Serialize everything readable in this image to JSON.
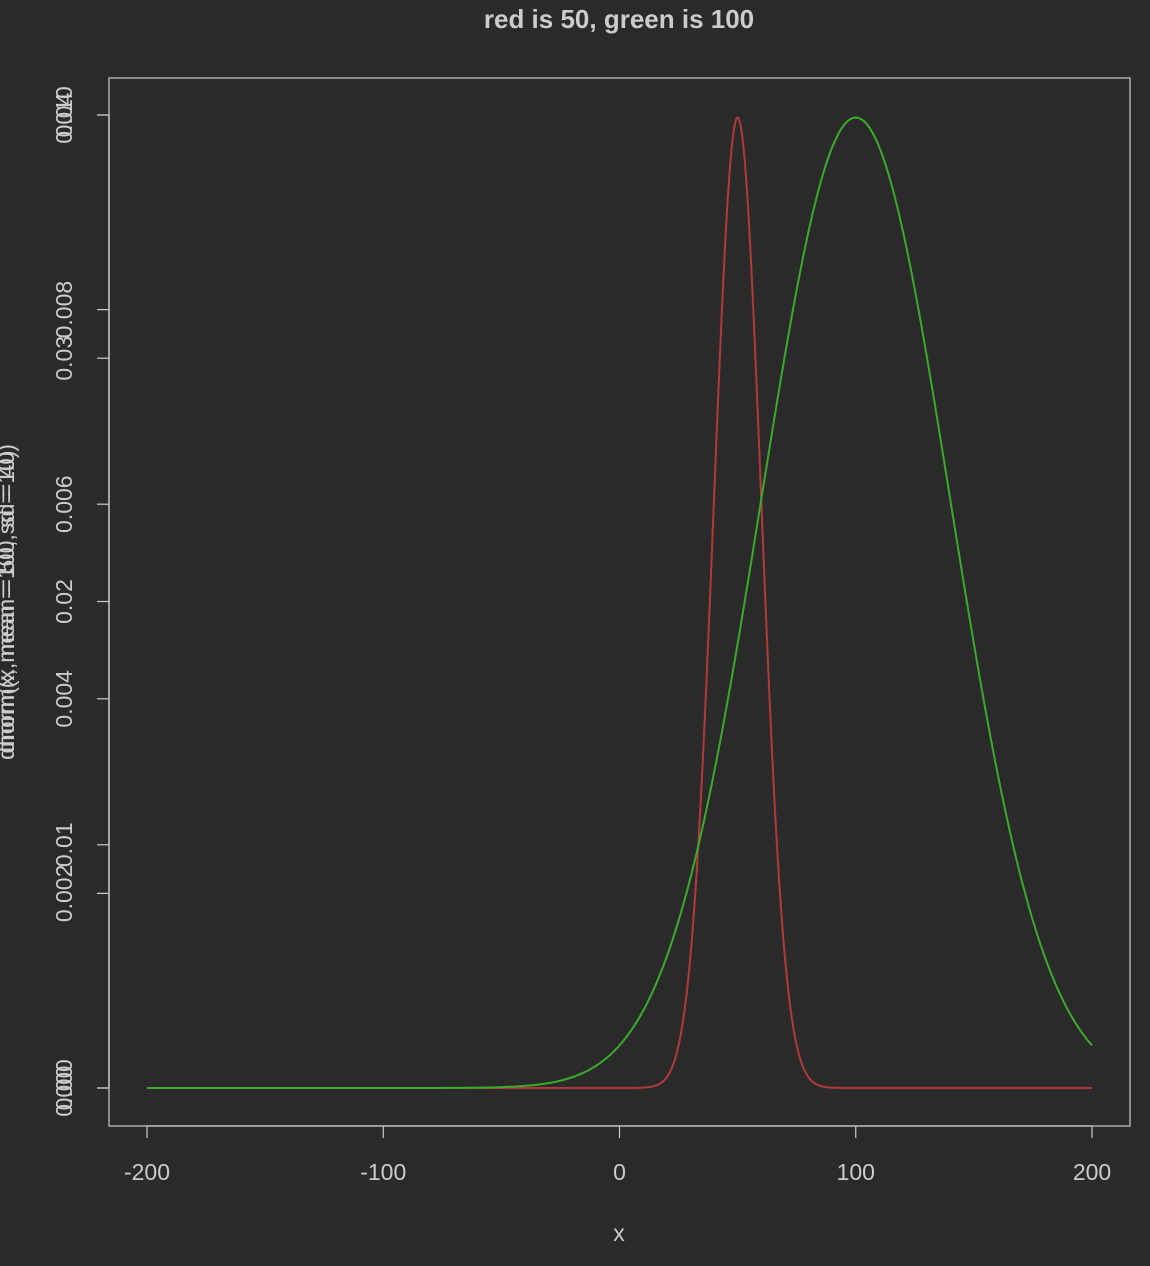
{
  "chart_data": {
    "type": "line",
    "title": "red is 50, green is 100",
    "xlabel": "x",
    "ylabels": [
      "dnorm(x, mean = 50, sd = 10)",
      "dnorm(x, mean = 100, sd = 40)"
    ],
    "xlim": [
      -200,
      200
    ],
    "x_ticks": [
      -200,
      -100,
      0,
      100,
      200
    ],
    "x_tick_labels": [
      "-200",
      "-100",
      "0",
      "100",
      "200"
    ],
    "y_axes": [
      {
        "name": "red-axis",
        "ylim": [
          0,
          0.04
        ],
        "ticks": [
          0,
          0.01,
          0.02,
          0.03,
          0.04
        ],
        "tick_labels": [
          "0.00",
          "0.01",
          "0.02",
          "0.03",
          "0.04"
        ]
      },
      {
        "name": "green-axis",
        "ylim": [
          0,
          0.01
        ],
        "ticks": [
          0,
          0.002,
          0.004,
          0.006,
          0.008,
          0.01
        ],
        "tick_labels": [
          "0.000",
          "0.002",
          "0.004",
          "0.006",
          "0.008",
          "0.010"
        ]
      }
    ],
    "series": [
      {
        "mean": 50,
        "sd": 10,
        "color": "#b03a3a",
        "axis": 0
      },
      {
        "mean": 100,
        "sd": 40,
        "color": "#3aaa2a",
        "axis": 1
      }
    ]
  }
}
